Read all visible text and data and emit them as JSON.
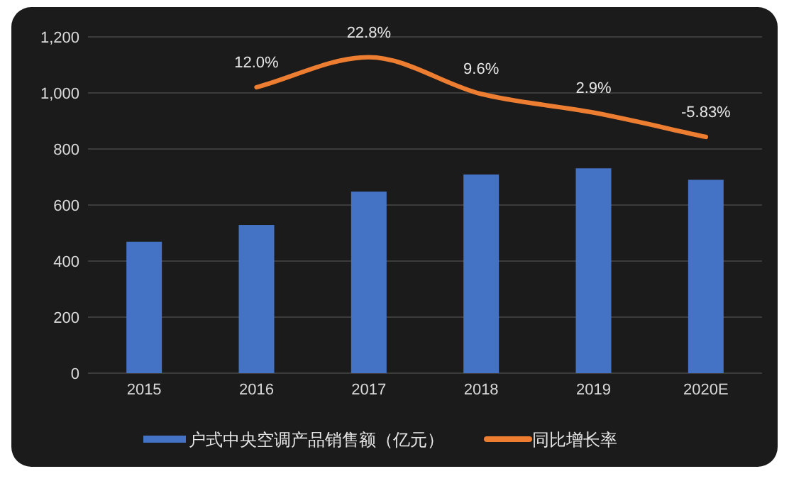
{
  "chart_data": {
    "type": "bar",
    "categories": [
      "2015",
      "2016",
      "2017",
      "2018",
      "2019",
      "2020E"
    ],
    "series": [
      {
        "name": "户式中央空调产品销售额（亿元）",
        "color": "#4472c4",
        "values": [
          469,
          529,
          648,
          709,
          731,
          690
        ]
      },
      {
        "name": "同比增长率",
        "type": "line",
        "axis": "y2",
        "color": "#ed7d31",
        "values": [
          null,
          12.0,
          22.8,
          9.6,
          2.9,
          -5.83
        ],
        "value_labels": [
          null,
          "12.0%",
          "22.8%",
          "9.6%",
          "2.9%",
          "-5.83%"
        ]
      }
    ],
    "ylim": [
      0,
      1200
    ],
    "yticks": [
      0,
      200,
      400,
      600,
      800,
      {
        "value": 1000,
        "label": "1,000"
      },
      {
        "value": 1200,
        "label": "1,200"
      }
    ],
    "y2lim": [
      -90.7,
      30.1
    ],
    "grid": "y",
    "legend": "bottom",
    "marker": "none"
  }
}
